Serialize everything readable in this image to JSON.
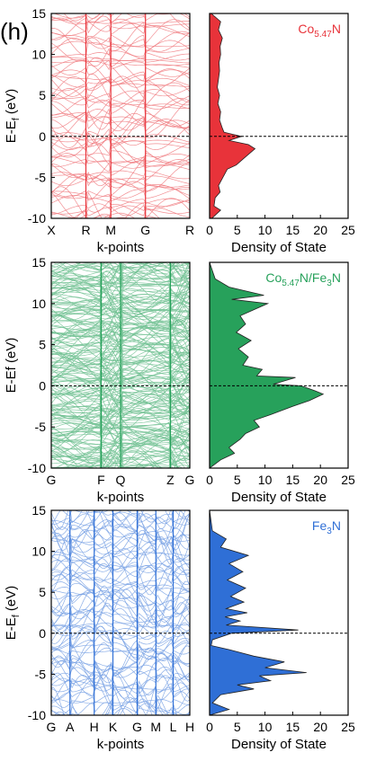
{
  "figure": {
    "label": "(h)"
  },
  "colors": {
    "red": "#e8333a",
    "green": "#27a15b",
    "blue": "#2f6fd6"
  },
  "chart_data": [
    {
      "type": "line",
      "panel": "band-structure",
      "ylabel": "E-E_f (eV)",
      "xlabel": "k-points",
      "ylim": [
        -10,
        15
      ],
      "yticks": [
        -10,
        -5,
        0,
        5,
        10,
        15
      ],
      "kpoint_labels": [
        "X",
        "R",
        "M",
        "G",
        "R"
      ],
      "kpoint_x": [
        0,
        0.25,
        0.43,
        0.68,
        1.0
      ],
      "fermi_level": 0,
      "band_count": 70,
      "color": "red"
    },
    {
      "type": "area",
      "panel": "density-of-states",
      "label": "Co5.47N",
      "xlabel": "Density of State",
      "xlim": [
        0,
        25
      ],
      "xticks": [
        0,
        5,
        10,
        15,
        20,
        25
      ],
      "ylim": [
        -10,
        15
      ],
      "fermi_level": 0,
      "color": "red",
      "x": [
        0.3,
        2.0,
        1.6,
        2.3,
        1.9,
        2.0,
        1.7,
        1.8,
        1.6,
        1.4,
        1.8,
        1.5,
        2.0,
        1.8,
        2.3,
        2.6,
        5.8,
        3.5,
        7.0,
        8.2,
        6.5,
        4.8,
        3.2,
        2.4,
        1.6,
        1.9,
        1.0,
        0.8,
        2.0,
        1.2,
        0.4
      ],
      "y": [
        15,
        14,
        13,
        12,
        11,
        10,
        9,
        8,
        7,
        6,
        5,
        4,
        3,
        2,
        1,
        0.5,
        0,
        -0.5,
        -1,
        -1.5,
        -2.5,
        -3.5,
        -4,
        -5,
        -6,
        -6.8,
        -7.5,
        -8.5,
        -9,
        -9.5,
        -10
      ]
    },
    {
      "type": "line",
      "panel": "band-structure",
      "ylabel": "E-Ef (eV)",
      "xlabel": "k-points",
      "ylim": [
        -10,
        15
      ],
      "yticks": [
        -10,
        -5,
        0,
        5,
        10,
        15
      ],
      "kpoint_labels": [
        "G",
        "F",
        "Q",
        "Z",
        "G"
      ],
      "kpoint_x": [
        0,
        0.36,
        0.5,
        0.86,
        1.0
      ],
      "fermi_level": 0,
      "band_count": 220,
      "color": "green"
    },
    {
      "type": "area",
      "panel": "density-of-states",
      "label": "Co5.47N/Fe3N",
      "xlabel": "Density of State",
      "xlim": [
        0,
        25
      ],
      "xticks": [
        0,
        5,
        10,
        15,
        20,
        25
      ],
      "ylim": [
        -10,
        15
      ],
      "fermi_level": 0,
      "color": "green",
      "x": [
        0,
        0.5,
        1,
        3.5,
        9.8,
        4.0,
        10.5,
        5.5,
        6.5,
        4.8,
        7.5,
        5.2,
        7.0,
        6.0,
        9.5,
        8.5,
        15.5,
        11.5,
        16.5,
        19.0,
        20.5,
        18.0,
        15.0,
        11.0,
        8.0,
        9.0,
        6.5,
        5.5,
        3.5,
        4.5,
        2.0,
        1.0,
        0
      ],
      "y": [
        15,
        14,
        13,
        12,
        11,
        10.5,
        10,
        8.5,
        7.5,
        6.5,
        5.5,
        4.5,
        3.5,
        2.5,
        2,
        1.2,
        1,
        0.2,
        0,
        -0.6,
        -1,
        -1.8,
        -2.5,
        -3.5,
        -4.2,
        -5,
        -5.8,
        -6.5,
        -7.5,
        -8.2,
        -9,
        -9.5,
        -10
      ]
    },
    {
      "type": "line",
      "panel": "band-structure",
      "ylabel": "E-E_f (eV)",
      "xlabel": "k-points",
      "ylim": [
        -10,
        15
      ],
      "yticks": [
        -10,
        -5,
        0,
        5,
        10,
        15
      ],
      "kpoint_labels": [
        "G",
        "A",
        "H",
        "K",
        "G",
        "M",
        "L",
        "H"
      ],
      "kpoint_x": [
        0,
        0.135,
        0.31,
        0.445,
        0.62,
        0.755,
        0.88,
        1.0
      ],
      "fermi_level": 0,
      "band_count": 80,
      "color": "blue"
    },
    {
      "type": "area",
      "panel": "density-of-states",
      "label": "Fe3N",
      "xlabel": "Density of State",
      "xlim": [
        0,
        25
      ],
      "xticks": [
        0,
        5,
        10,
        15,
        20,
        25
      ],
      "ylim": [
        -10,
        15
      ],
      "fermi_level": 0,
      "color": "blue",
      "x": [
        0,
        0.5,
        3.0,
        2.0,
        7.0,
        3.5,
        6.0,
        3.2,
        6.5,
        3.8,
        6.2,
        3.0,
        6.8,
        2.8,
        5.5,
        3.0,
        16.0,
        4.0,
        0.5,
        0.3,
        3.5,
        8.0,
        13.5,
        10.0,
        17.5,
        9.0,
        11.0,
        5.0,
        8.0,
        2.0,
        0.5,
        3.5,
        0
      ],
      "y": [
        15,
        12.5,
        11.5,
        10.5,
        9.5,
        8.5,
        7.5,
        6.5,
        5.5,
        4.5,
        3.8,
        3,
        2.5,
        2,
        1.5,
        1,
        0.4,
        0,
        -0.8,
        -1.5,
        -2,
        -2.8,
        -3.5,
        -4.2,
        -4.8,
        -5.2,
        -5.8,
        -6.3,
        -6.8,
        -7.5,
        -8.5,
        -9.3,
        -10
      ]
    }
  ]
}
